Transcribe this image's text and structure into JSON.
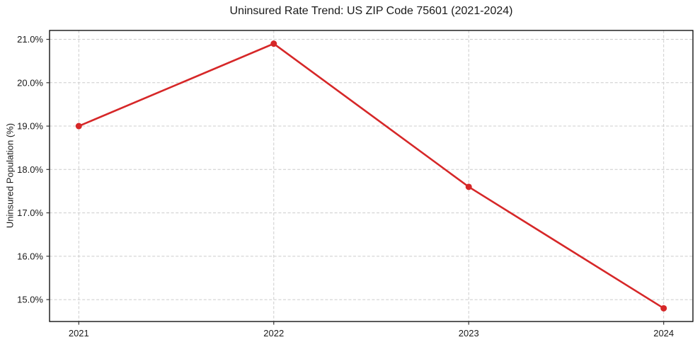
{
  "chart_data": {
    "type": "line",
    "title": "Uninsured Rate Trend: US ZIP Code 75601 (2021-2024)",
    "xlabel": "",
    "ylabel": "Uninsured Population (%)",
    "x": [
      2021,
      2022,
      2023,
      2024
    ],
    "series": [
      {
        "name": "uninsured-rate",
        "values": [
          19.0,
          20.9,
          17.6,
          14.8
        ],
        "color": "#d62728",
        "marker": "circle",
        "line_width": 2.6,
        "marker_radius": 4.5
      }
    ],
    "xticks": [
      2021,
      2022,
      2023,
      2024
    ],
    "xtick_labels": [
      "2021",
      "2022",
      "2023",
      "2024"
    ],
    "yticks": [
      15,
      16,
      17,
      18,
      19,
      20,
      21
    ],
    "ytick_labels": [
      "15.0%",
      "16.0%",
      "17.0%",
      "18.0%",
      "19.0%",
      "20.0%",
      "21.0%"
    ],
    "xlim": [
      2020.85,
      2024.15
    ],
    "ylim": [
      14.495,
      21.205
    ],
    "grid": true,
    "grid_color": "#cccccc",
    "grid_style": "dashed",
    "legend": "none",
    "background": "#ffffff",
    "spine_color": "#000000",
    "tick_color": "#333333",
    "text_color": "#1a1a1a"
  }
}
